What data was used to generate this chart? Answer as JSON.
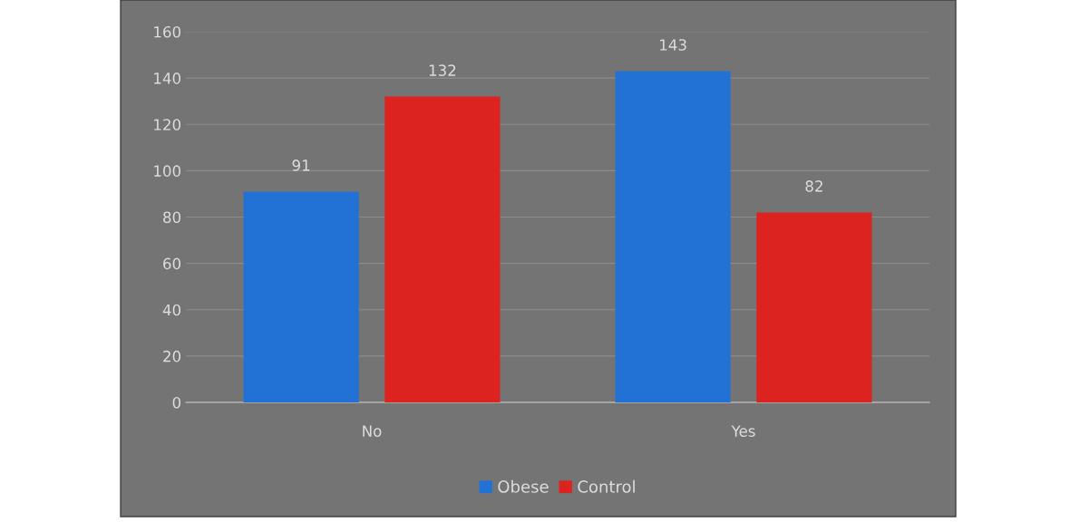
{
  "chart_data": {
    "type": "bar",
    "categories": [
      "No",
      "Yes"
    ],
    "series": [
      {
        "name": "Obese",
        "color": "#2272d6",
        "values": [
          91,
          143
        ]
      },
      {
        "name": "Control",
        "color": "#dc2320",
        "values": [
          132,
          82
        ]
      }
    ],
    "ylim": [
      0,
      160
    ],
    "yticks": [
      0,
      20,
      40,
      60,
      80,
      100,
      120,
      140,
      160
    ],
    "grid": "y",
    "legend": "bottom",
    "data_labels": true
  }
}
